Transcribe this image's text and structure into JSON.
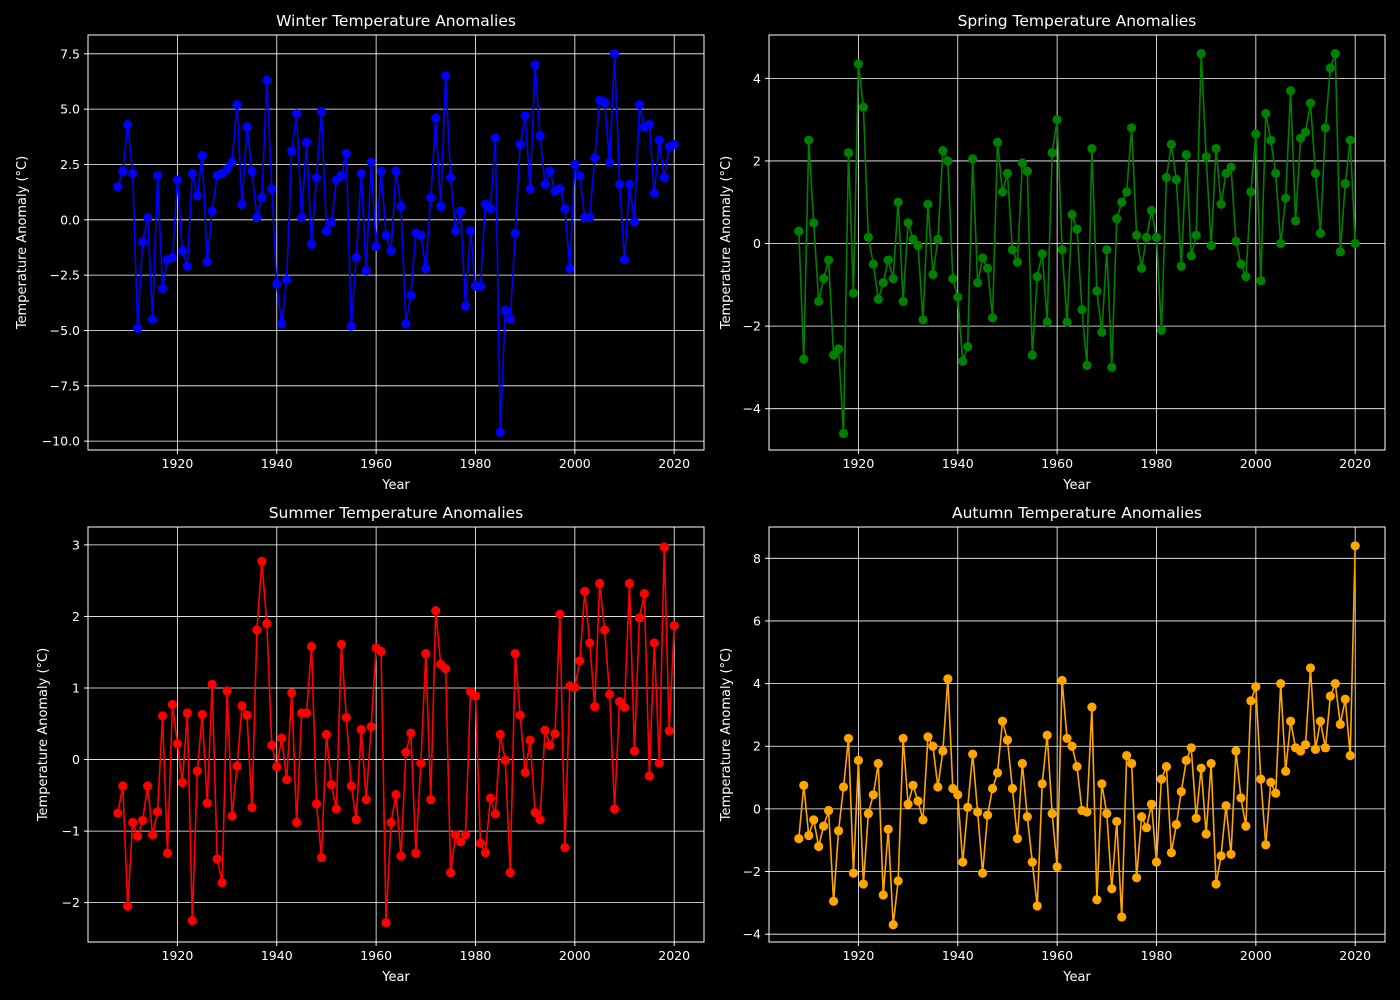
{
  "figure": {
    "background": "#000000",
    "foreground": "#ffffff"
  },
  "chart_data": [
    {
      "type": "line",
      "title": "Winter Temperature Anomalies",
      "xlabel": "Year",
      "ylabel": "Temperature Anomaly (°C)",
      "color": "#0000ff",
      "marker": "circle",
      "grid": true,
      "xlim": [
        1902,
        2026
      ],
      "ylim": [
        -10.4,
        8.35
      ],
      "xticks": [
        1920,
        1940,
        1960,
        1980,
        2000,
        2020
      ],
      "xtick_labels": [
        "1920",
        "1940",
        "1960",
        "1980",
        "2000",
        "2020"
      ],
      "yticks": [
        -10.0,
        -7.5,
        -5.0,
        -2.5,
        0.0,
        2.5,
        5.0,
        7.5
      ],
      "ytick_labels": [
        "−10.0",
        "−7.5",
        "−5.0",
        "−2.5",
        "0.0",
        "2.5",
        "5.0",
        "7.5"
      ],
      "x_start": 1908,
      "values": [
        1.5,
        2.2,
        4.3,
        2.1,
        -4.9,
        -1.0,
        0.1,
        -4.5,
        2.0,
        -3.1,
        -1.8,
        -1.7,
        1.8,
        -1.4,
        -2.1,
        2.1,
        1.1,
        2.9,
        -1.9,
        0.4,
        2.0,
        2.1,
        2.3,
        2.6,
        5.2,
        0.7,
        4.2,
        2.2,
        0.1,
        1.0,
        6.3,
        1.4,
        -2.9,
        -4.7,
        -2.7,
        3.1,
        4.8,
        0.1,
        3.5,
        -1.1,
        1.9,
        4.9,
        -0.5,
        -0.1,
        1.8,
        2.0,
        3.0,
        -4.8,
        -1.7,
        2.1,
        -2.3,
        2.6,
        -1.2,
        2.2,
        -0.7,
        -1.4,
        2.2,
        0.6,
        -4.7,
        -3.4,
        -0.6,
        -0.7,
        -2.2,
        1.0,
        4.6,
        0.6,
        6.5,
        1.9,
        -0.5,
        0.4,
        -3.9,
        -0.5,
        -3.0,
        -3.0,
        0.7,
        0.5,
        3.7,
        -9.6,
        -4.1,
        -4.5,
        -0.6,
        3.4,
        4.7,
        1.4,
        7.0,
        3.8,
        1.6,
        2.2,
        1.3,
        1.4,
        0.5,
        -2.2,
        2.5,
        2.0,
        0.1,
        0.1,
        2.8,
        5.4,
        5.3,
        2.6,
        7.5,
        1.6,
        -1.8,
        1.6,
        -0.1,
        5.2,
        4.2,
        4.3,
        1.2,
        3.6,
        1.9,
        3.3,
        3.4
      ]
    },
    {
      "type": "line",
      "title": "Spring Temperature Anomalies",
      "xlabel": "Year",
      "ylabel": "Temperature Anomaly (°C)",
      "color": "#008000",
      "marker": "circle",
      "grid": true,
      "xlim": [
        1902,
        2026
      ],
      "ylim": [
        -5.0,
        5.05
      ],
      "xticks": [
        1920,
        1940,
        1960,
        1980,
        2000,
        2020
      ],
      "xtick_labels": [
        "1920",
        "1940",
        "1960",
        "1980",
        "2000",
        "2020"
      ],
      "yticks": [
        -4,
        -2,
        0,
        2,
        4
      ],
      "ytick_labels": [
        "−4",
        "−2",
        "0",
        "2",
        "4"
      ],
      "x_start": 1908,
      "values": [
        0.3,
        -2.8,
        2.5,
        0.5,
        -1.4,
        -0.85,
        -0.4,
        -2.7,
        -2.55,
        -4.6,
        2.2,
        -1.2,
        4.35,
        3.3,
        0.15,
        -0.5,
        -1.35,
        -0.95,
        -0.4,
        -0.85,
        1.0,
        -1.4,
        0.5,
        0.1,
        -0.05,
        -1.85,
        0.95,
        -0.75,
        0.1,
        2.25,
        2.0,
        -0.85,
        -1.3,
        -2.85,
        -2.5,
        2.05,
        -0.95,
        -0.35,
        -0.6,
        -1.8,
        2.45,
        1.25,
        1.7,
        -0.15,
        -0.45,
        1.95,
        1.75,
        -2.7,
        -0.8,
        -0.25,
        -1.9,
        2.2,
        3.0,
        -0.15,
        -1.9,
        0.7,
        0.35,
        -1.6,
        -2.95,
        2.3,
        -1.15,
        -2.15,
        -0.15,
        -3.0,
        0.6,
        1.0,
        1.25,
        2.8,
        0.2,
        -0.6,
        0.15,
        0.8,
        0.15,
        -2.1,
        1.6,
        2.4,
        1.55,
        -0.55,
        2.15,
        -0.3,
        0.2,
        4.6,
        2.1,
        -0.05,
        2.3,
        0.95,
        1.7,
        1.85,
        0.05,
        -0.5,
        -0.8,
        1.25,
        2.65,
        -0.9,
        3.15,
        2.5,
        1.7,
        0.0,
        1.1,
        3.7,
        0.55,
        2.55,
        2.7,
        3.4,
        1.7,
        0.25,
        2.8,
        4.25,
        4.6,
        -0.2,
        1.45,
        2.5,
        0.0
      ]
    },
    {
      "type": "line",
      "title": "Summer Temperature Anomalies",
      "xlabel": "Year",
      "ylabel": "Temperature Anomaly (°C)",
      "color": "#ff0000",
      "marker": "circle",
      "grid": true,
      "xlim": [
        1902,
        2026
      ],
      "ylim": [
        -2.55,
        3.25
      ],
      "xticks": [
        1920,
        1940,
        1960,
        1980,
        2000,
        2020
      ],
      "xtick_labels": [
        "1920",
        "1940",
        "1960",
        "1980",
        "2000",
        "2020"
      ],
      "yticks": [
        -2,
        -1,
        0,
        1,
        2,
        3
      ],
      "ytick_labels": [
        "−2",
        "−1",
        "0",
        "1",
        "2",
        "3"
      ],
      "x_start": 1908,
      "values": [
        -0.75,
        -0.37,
        -2.05,
        -0.88,
        -1.07,
        -0.85,
        -0.37,
        -1.05,
        -0.73,
        0.61,
        -1.31,
        0.77,
        0.22,
        -0.32,
        0.65,
        -2.25,
        -0.16,
        0.63,
        -0.61,
        1.05,
        -1.39,
        -1.72,
        0.96,
        -0.79,
        -0.09,
        0.75,
        0.62,
        -0.67,
        1.81,
        2.77,
        1.9,
        0.2,
        -0.1,
        0.3,
        -0.28,
        0.93,
        -0.88,
        0.65,
        0.65,
        1.58,
        -0.62,
        -1.37,
        0.35,
        -0.35,
        -0.69,
        1.61,
        0.59,
        -0.37,
        -0.84,
        0.42,
        -0.56,
        0.46,
        1.56,
        1.51,
        -2.28,
        -0.88,
        -0.49,
        -1.35,
        0.1,
        0.37,
        -1.31,
        -0.05,
        1.48,
        -0.56,
        2.08,
        1.33,
        1.27,
        -1.58,
        -1.05,
        -1.15,
        -1.05,
        0.95,
        0.89,
        -1.17,
        -1.3,
        -0.54,
        -0.76,
        0.35,
        -0.01,
        -1.58,
        1.48,
        0.62,
        -0.18,
        0.27,
        -0.74,
        -0.84,
        0.41,
        0.2,
        0.36,
        2.03,
        -1.23,
        1.03,
        1.01,
        1.38,
        2.35,
        1.63,
        0.74,
        2.46,
        1.81,
        0.91,
        -0.69,
        0.81,
        0.73,
        2.46,
        0.12,
        1.98,
        2.32,
        -0.23,
        1.63,
        -0.05,
        2.97,
        0.4,
        1.87
      ]
    },
    {
      "type": "line",
      "title": "Autumn Temperature Anomalies",
      "xlabel": "Year",
      "ylabel": "Temperature Anomaly (°C)",
      "color": "#ffa500",
      "marker": "circle",
      "grid": true,
      "xlim": [
        1902,
        2026
      ],
      "ylim": [
        -4.25,
        9.0
      ],
      "xticks": [
        1920,
        1940,
        1960,
        1980,
        2000,
        2020
      ],
      "xtick_labels": [
        "1920",
        "1940",
        "1960",
        "1980",
        "2000",
        "2020"
      ],
      "yticks": [
        -4,
        -2,
        0,
        2,
        4,
        6,
        8
      ],
      "ytick_labels": [
        "−4",
        "−2",
        "0",
        "2",
        "4",
        "6",
        "8"
      ],
      "x_start": 1908,
      "values": [
        -0.95,
        0.75,
        -0.85,
        -0.35,
        -1.2,
        -0.55,
        -0.05,
        -2.95,
        -0.7,
        0.7,
        2.25,
        -2.05,
        1.55,
        -2.4,
        -0.15,
        0.45,
        1.45,
        -2.75,
        -0.65,
        -3.7,
        -2.3,
        2.25,
        0.15,
        0.75,
        0.25,
        -0.35,
        2.3,
        2.0,
        0.7,
        1.85,
        4.15,
        0.65,
        0.45,
        -1.7,
        0.05,
        1.75,
        -0.1,
        -2.05,
        -0.2,
        0.65,
        1.15,
        2.8,
        2.2,
        0.65,
        -0.95,
        1.45,
        -0.25,
        -1.7,
        -3.1,
        0.8,
        2.35,
        -0.15,
        -1.85,
        4.1,
        2.25,
        2.0,
        1.35,
        -0.05,
        -0.1,
        3.25,
        -2.9,
        0.8,
        -0.15,
        -2.55,
        -0.4,
        -3.45,
        1.7,
        1.45,
        -2.2,
        -0.25,
        -0.6,
        0.15,
        -1.7,
        0.95,
        1.35,
        -1.4,
        -0.5,
        0.55,
        1.55,
        1.95,
        -0.3,
        1.3,
        -0.8,
        1.45,
        -2.4,
        -1.5,
        0.1,
        -1.45,
        1.85,
        0.35,
        -0.55,
        3.45,
        3.9,
        0.95,
        -1.15,
        0.85,
        0.5,
        4.0,
        1.2,
        2.8,
        1.95,
        1.85,
        2.05,
        4.5,
        1.9,
        2.8,
        1.95,
        3.6,
        4.0,
        2.7,
        3.5,
        1.7,
        8.4
      ]
    }
  ]
}
